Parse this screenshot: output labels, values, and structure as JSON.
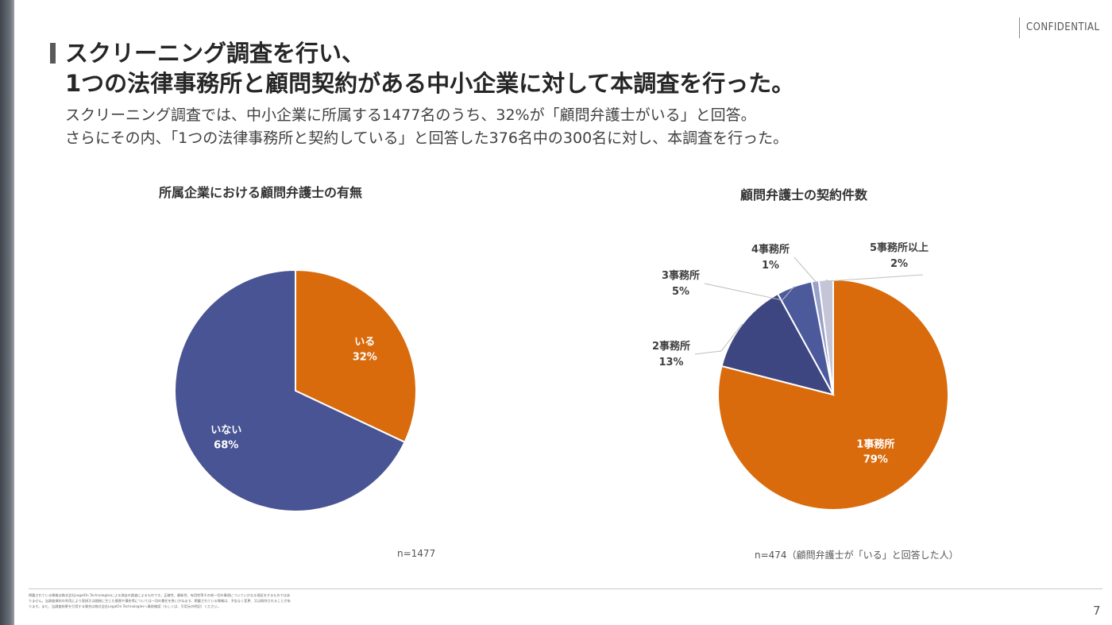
{
  "header": {
    "confidential": "CONFIDENTIAL",
    "title_line1": "スクリーニング調査を行い、",
    "title_line2": "1つの法律事務所と顧問契約がある中小企業に対して本調査を行った。",
    "subtitle_line1": "スクリーニング調査では、中小企業に所属する1477名のうち、32%が「顧問弁護士がいる」と回答。",
    "subtitle_line2": "さらにその内、「1つの法律事務所と契約している」と回答した376名中の300名に対し、本調査を行った。"
  },
  "chart_data": [
    {
      "type": "pie",
      "title": "所属企業における顧問弁護士の有無",
      "note": "n=1477",
      "slices": [
        {
          "label": "いる",
          "value": 32,
          "value_label": "32%",
          "color": "#d96b0c"
        },
        {
          "label": "いない",
          "value": 68,
          "value_label": "68%",
          "color": "#485493"
        }
      ]
    },
    {
      "type": "pie",
      "title": "顧問弁護士の契約件数",
      "note": "n=474（顧問弁護士が「いる」と回答した人）",
      "slices": [
        {
          "label": "1事務所",
          "value": 79,
          "value_label": "79%",
          "color": "#d96b0c"
        },
        {
          "label": "2事務所",
          "value": 13,
          "value_label": "13%",
          "color": "#3d4681"
        },
        {
          "label": "3事務所",
          "value": 5,
          "value_label": "5%",
          "color": "#4c5a9c"
        },
        {
          "label": "4事務所",
          "value": 1,
          "value_label": "1%",
          "color": "#9aa1c8"
        },
        {
          "label": "5事務所以上",
          "value": 2,
          "value_label": "2%",
          "color": "#c4c6d8"
        }
      ]
    }
  ],
  "footer": {
    "disclaimer": "掲載されている情報は株式会社LegalOn Technologiesによる独自の調査によるものです。正確性、最新性、有用性等その他一切の事項についていかなる保証をするものではありません。当調査資料の利用により直接又は間接に生じた損害や損失等については一切の責任を負いかねます。掲載されている情報は、予告なく変更、又は削除されることがあります。また、当調査結果を引用する場合は株式会社LegalOn Technologiesへ事前確認（もしくは、引用元の明記）ください。",
    "page_number": "7"
  },
  "colors": {
    "accent_orange": "#d96b0c",
    "navy": "#485493"
  }
}
